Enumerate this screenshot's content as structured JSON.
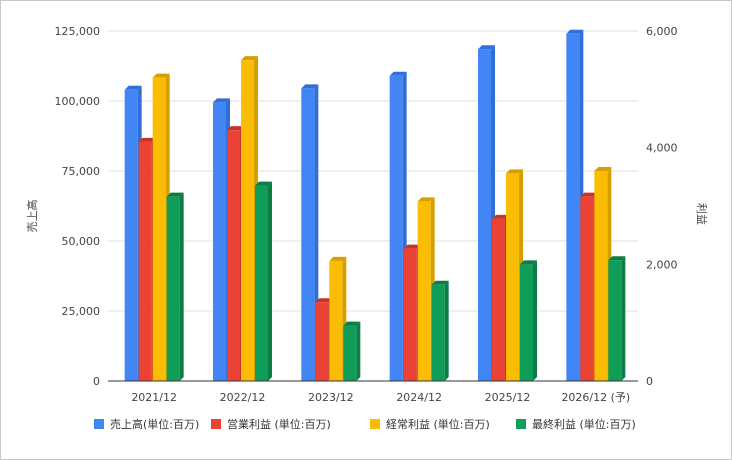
{
  "chart_data": {
    "type": "bar",
    "categories": [
      "2021/12",
      "2022/12",
      "2023/12",
      "2024/12",
      "2025/12",
      "2026/12 (予)"
    ],
    "left_axis": {
      "label": "売上高",
      "ylim": [
        0,
        125000
      ],
      "ticks": [
        "0",
        "25,000",
        "50,000",
        "75,000",
        "100,000",
        "125,000"
      ],
      "tick_values": [
        0,
        25000,
        50000,
        75000,
        100000,
        125000
      ]
    },
    "right_axis": {
      "label": "利益",
      "ylim": [
        0,
        6000
      ],
      "ticks": [
        "0",
        "2,000",
        "4,000",
        "6,000"
      ],
      "tick_values": [
        0,
        2000,
        4000,
        6000
      ]
    },
    "series": [
      {
        "name": "売上高(単位:百万)",
        "axis": "left",
        "color": "#4285f4",
        "shade": "#2f6fd6",
        "values": [
          104000,
          99500,
          104500,
          109000,
          118500,
          124000
        ]
      },
      {
        "name": "営業利益 (単位:百万)",
        "axis": "right",
        "color": "#ea4335",
        "shade": "#c73326",
        "values": [
          4100,
          4300,
          1350,
          2270,
          2780,
          3160
        ]
      },
      {
        "name": "経常利益 (単位:百万)",
        "axis": "right",
        "color": "#fbbc04",
        "shade": "#d89e00",
        "values": [
          5200,
          5500,
          2060,
          3080,
          3560,
          3600
        ]
      },
      {
        "name": "最終利益 (単位:百万)",
        "axis": "right",
        "color": "#0f9d58",
        "shade": "#0b7d45",
        "values": [
          3160,
          3350,
          950,
          1650,
          2000,
          2070
        ]
      }
    ],
    "grid": true,
    "legend_position": "bottom"
  }
}
